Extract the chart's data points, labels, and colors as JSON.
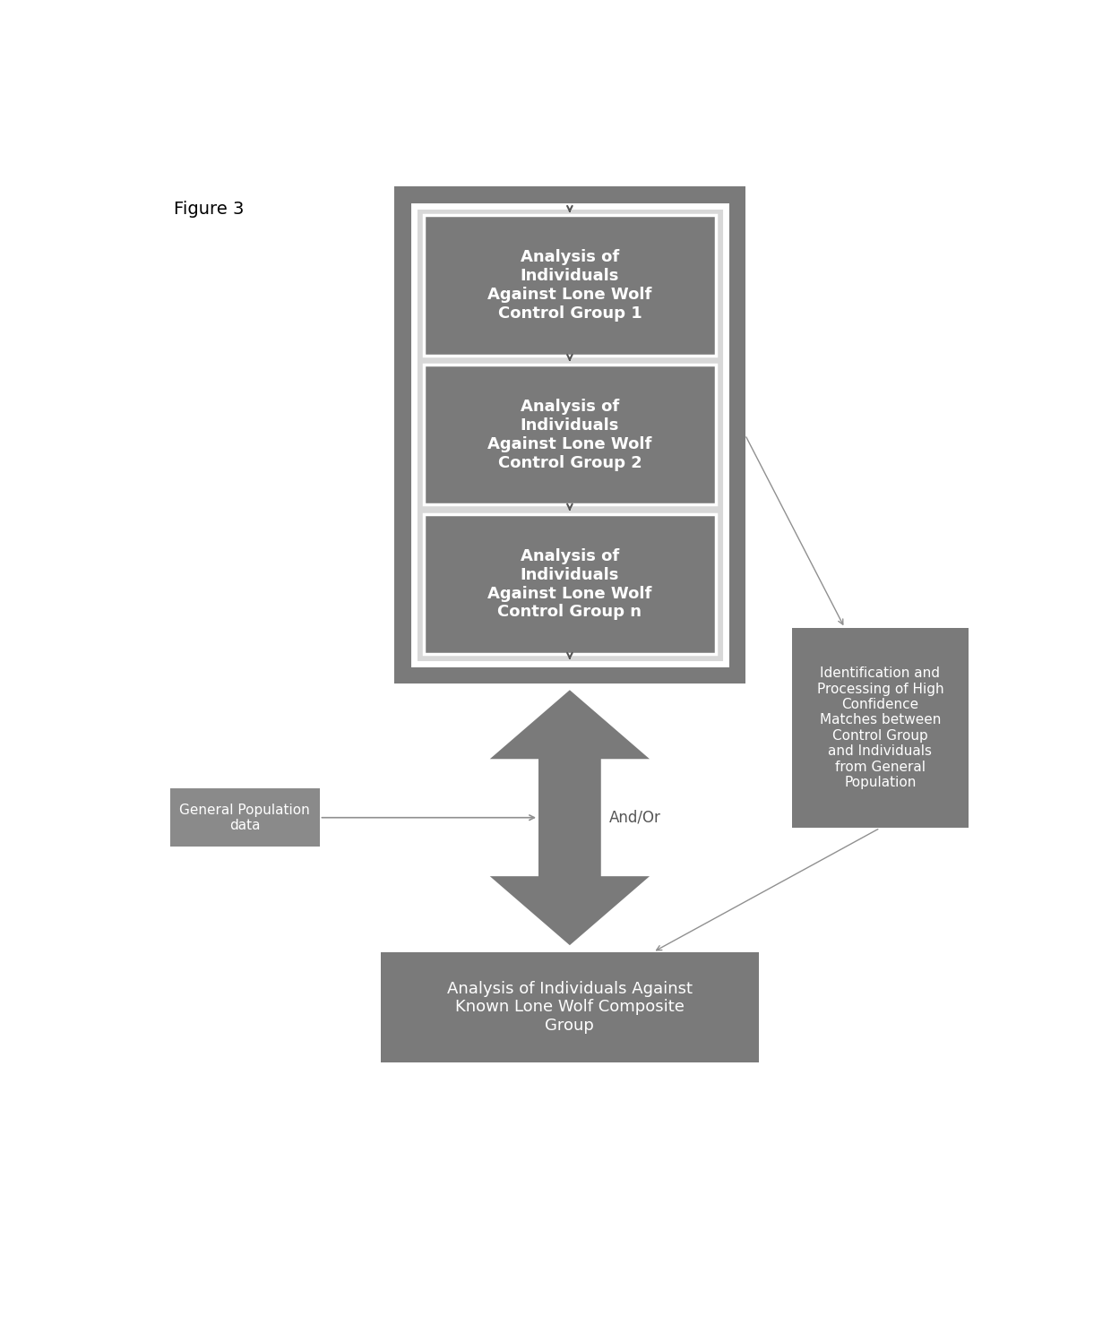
{
  "figure_label": "Figure 3",
  "background_color": "#ffffff",
  "outer_box_color": "#7a7a7a",
  "inner_bg_color": "#d8d8d8",
  "inner_box_color": "#7a7a7a",
  "bottom_box_color": "#7a7a7a",
  "left_box_color": "#8a8a8a",
  "right_box_color": "#7a7a7a",
  "arrow_body_color": "#7a7a7a",
  "connector_color": "#909090",
  "text_color": "#ffffff",
  "dark_text_color": "#555555",
  "groups": [
    "Analysis of\nIndividuals\nAgainst Lone Wolf\nControl Group 1",
    "Analysis of\nIndividuals\nAgainst Lone Wolf\nControl Group 2",
    "Analysis of\nIndividuals\nAgainst Lone Wolf\nControl Group n"
  ],
  "bottom_box_text": "Analysis of Individuals Against\nKnown Lone Wolf Composite\nGroup",
  "left_box_text": "General Population\ndata",
  "right_box_text": "Identification and\nProcessing of High\nConfidence\nMatches between\nControl Group\nand Individuals\nfrom General\nPopulation",
  "andor_label": "And/Or"
}
